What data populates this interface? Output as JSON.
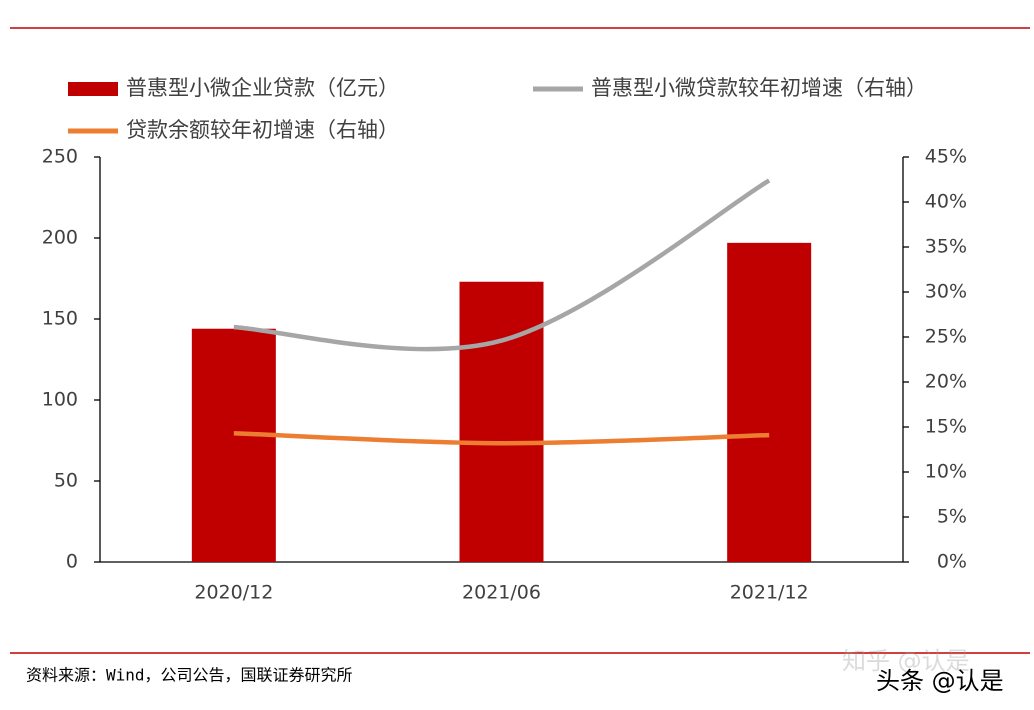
{
  "chart_data": {
    "type": "combo",
    "categories": [
      "2020/12",
      "2021/06",
      "2021/12"
    ],
    "series": [
      {
        "name": "普惠型小微企业贷款（亿元）",
        "type": "bar",
        "color": "#c00000",
        "values": [
          144,
          173,
          197
        ]
      },
      {
        "name": "普惠型小微贷款较年初增速（右轴）",
        "type": "line",
        "axis": "y2",
        "color": "#a6a6a6",
        "values": [
          26.1,
          24.6,
          42.4
        ]
      },
      {
        "name": "贷款余额较年初增速（右轴）",
        "type": "line",
        "axis": "y2",
        "color": "#ed7d31",
        "values": [
          14.3,
          13.2,
          14.1
        ]
      }
    ],
    "ylim": [
      0,
      250
    ],
    "yticks": [
      0,
      50,
      100,
      150,
      200,
      250
    ],
    "y2lim": [
      0,
      45
    ],
    "y2ticks": [
      {
        "value": 0,
        "label": "0%"
      },
      {
        "value": 5,
        "label": "5%"
      },
      {
        "value": 10,
        "label": "10%"
      },
      {
        "value": 15,
        "label": "15%"
      },
      {
        "value": 20,
        "label": "20%"
      },
      {
        "value": 25,
        "label": "25%"
      },
      {
        "value": 30,
        "label": "30%"
      },
      {
        "value": 35,
        "label": "35%"
      },
      {
        "value": 40,
        "label": "40%"
      },
      {
        "value": 45,
        "label": "45%"
      }
    ],
    "grid": false
  },
  "source": "资料来源：Wind，公司公告，国联证券研究所",
  "watermarks": [
    "知乎 @认是",
    "头条 @认是"
  ]
}
